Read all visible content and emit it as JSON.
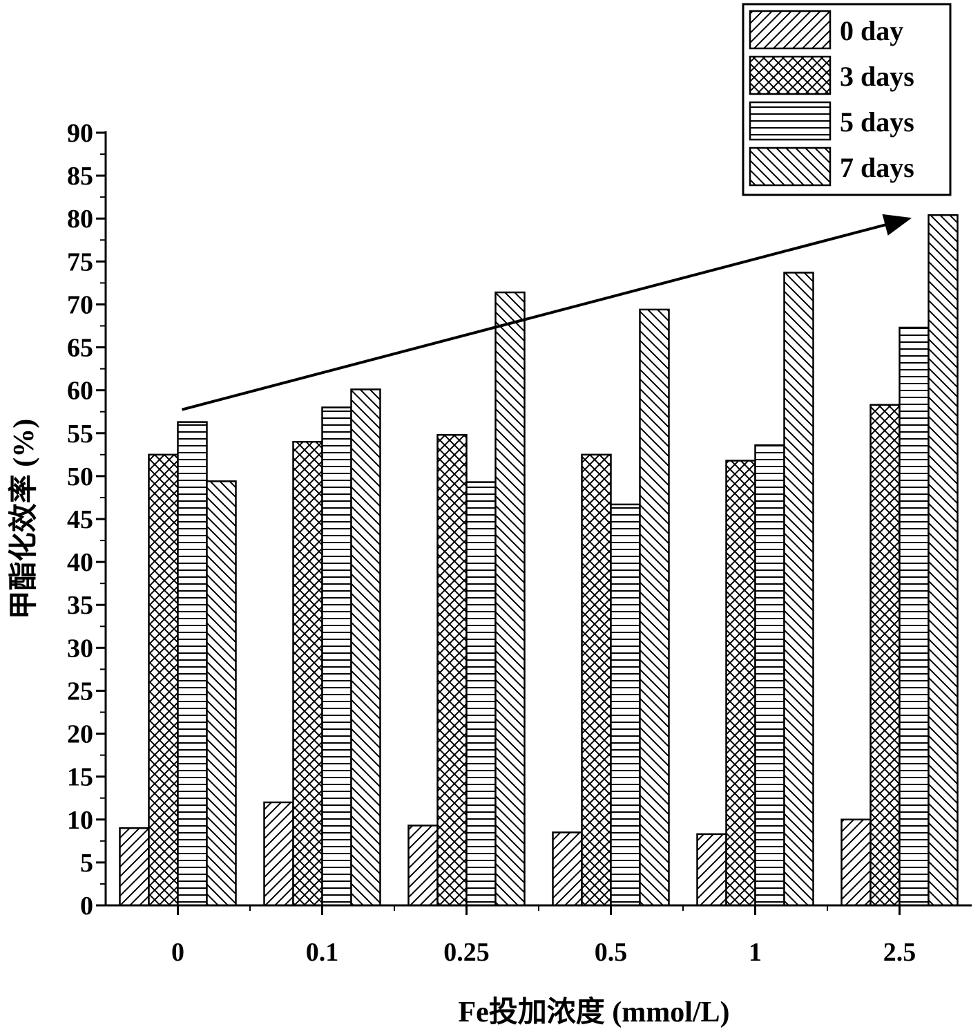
{
  "chart_data": {
    "type": "bar",
    "categories": [
      "0",
      "0.1",
      "0.25",
      "0.5",
      "1",
      "2.5"
    ],
    "xlabel": "Fe投加浓度 (mmol/L)",
    "ylabel": "甲酯化效率 (%)",
    "ylim": [
      0,
      90
    ],
    "yticks": [
      "0",
      "5",
      "10",
      "15",
      "20",
      "25",
      "30",
      "35",
      "40",
      "45",
      "50",
      "55",
      "60",
      "65",
      "70",
      "75",
      "80",
      "85",
      "90"
    ],
    "series": [
      {
        "name": "0 day",
        "pattern": "diagonal-up",
        "values": [
          9.0,
          12.0,
          9.3,
          8.5,
          8.3,
          10.0
        ]
      },
      {
        "name": "3 days",
        "pattern": "crosshatch",
        "values": [
          52.5,
          54.0,
          54.8,
          52.5,
          51.8,
          58.3
        ]
      },
      {
        "name": "5 days",
        "pattern": "horizontal",
        "values": [
          56.3,
          58.0,
          49.3,
          46.7,
          53.6,
          67.3
        ]
      },
      {
        "name": "7 days",
        "pattern": "diagonal-down",
        "values": [
          49.4,
          60.1,
          71.4,
          69.4,
          73.7,
          80.4
        ]
      }
    ],
    "trend_arrow": {
      "from": {
        "category": "0",
        "value": 56.3
      },
      "to": {
        "category": "2.5",
        "value": 80.4
      }
    },
    "grid": false,
    "legend_position": "top-right"
  }
}
